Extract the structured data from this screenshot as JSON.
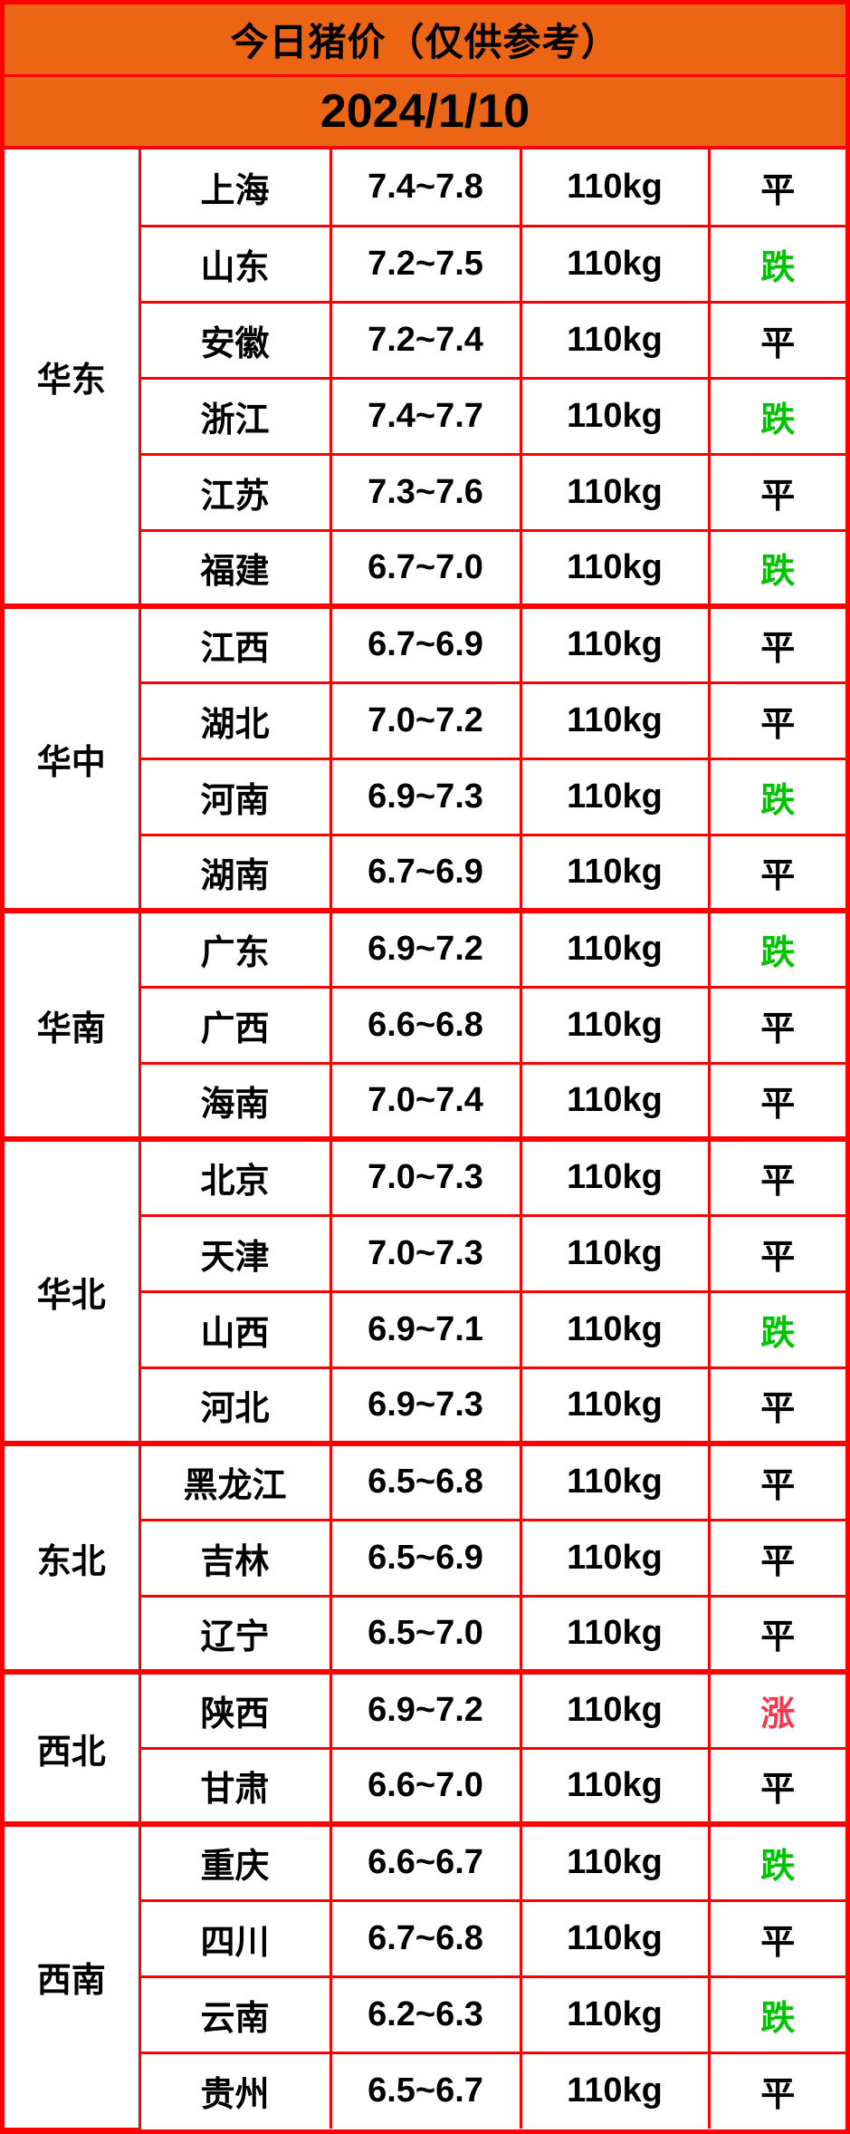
{
  "colors": {
    "header_bg": "#EC6514",
    "border": "#FE0000",
    "text": "#000000",
    "status_flat": "#000000",
    "status_down": "#00C300",
    "status_up": "#F5384E"
  },
  "chart_data": {
    "type": "table",
    "title": "今日猪价（仅供参考）",
    "date": "2024/1/10",
    "legend_note": "平=flat(black) 跌=down(green) 涨=up(red)",
    "status_colors": {
      "平": "#000000",
      "跌": "#00C300",
      "涨": "#F5384E"
    },
    "groups": [
      {
        "region": "华东",
        "rows": [
          {
            "province": "上海",
            "price": "7.4~7.8",
            "weight": "110kg",
            "status": "平"
          },
          {
            "province": "山东",
            "price": "7.2~7.5",
            "weight": "110kg",
            "status": "跌"
          },
          {
            "province": "安徽",
            "price": "7.2~7.4",
            "weight": "110kg",
            "status": "平"
          },
          {
            "province": "浙江",
            "price": "7.4~7.7",
            "weight": "110kg",
            "status": "跌"
          },
          {
            "province": "江苏",
            "price": "7.3~7.6",
            "weight": "110kg",
            "status": "平"
          },
          {
            "province": "福建",
            "price": "6.7~7.0",
            "weight": "110kg",
            "status": "跌"
          }
        ]
      },
      {
        "region": "华中",
        "rows": [
          {
            "province": "江西",
            "price": "6.7~6.9",
            "weight": "110kg",
            "status": "平"
          },
          {
            "province": "湖北",
            "price": "7.0~7.2",
            "weight": "110kg",
            "status": "平"
          },
          {
            "province": "河南",
            "price": "6.9~7.3",
            "weight": "110kg",
            "status": "跌"
          },
          {
            "province": "湖南",
            "price": "6.7~6.9",
            "weight": "110kg",
            "status": "平"
          }
        ]
      },
      {
        "region": "华南",
        "rows": [
          {
            "province": "广东",
            "price": "6.9~7.2",
            "weight": "110kg",
            "status": "跌"
          },
          {
            "province": "广西",
            "price": "6.6~6.8",
            "weight": "110kg",
            "status": "平"
          },
          {
            "province": "海南",
            "price": "7.0~7.4",
            "weight": "110kg",
            "status": "平"
          }
        ]
      },
      {
        "region": "华北",
        "rows": [
          {
            "province": "北京",
            "price": "7.0~7.3",
            "weight": "110kg",
            "status": "平"
          },
          {
            "province": "天津",
            "price": "7.0~7.3",
            "weight": "110kg",
            "status": "平"
          },
          {
            "province": "山西",
            "price": "6.9~7.1",
            "weight": "110kg",
            "status": "跌"
          },
          {
            "province": "河北",
            "price": "6.9~7.3",
            "weight": "110kg",
            "status": "平"
          }
        ]
      },
      {
        "region": "东北",
        "rows": [
          {
            "province": "黑龙江",
            "price": "6.5~6.8",
            "weight": "110kg",
            "status": "平"
          },
          {
            "province": "吉林",
            "price": "6.5~6.9",
            "weight": "110kg",
            "status": "平"
          },
          {
            "province": "辽宁",
            "price": "6.5~7.0",
            "weight": "110kg",
            "status": "平"
          }
        ]
      },
      {
        "region": "西北",
        "rows": [
          {
            "province": "陕西",
            "price": "6.9~7.2",
            "weight": "110kg",
            "status": "涨"
          },
          {
            "province": "甘肃",
            "price": "6.6~7.0",
            "weight": "110kg",
            "status": "平"
          }
        ]
      },
      {
        "region": "西南",
        "rows": [
          {
            "province": "重庆",
            "price": "6.6~6.7",
            "weight": "110kg",
            "status": "跌"
          },
          {
            "province": "四川",
            "price": "6.7~6.8",
            "weight": "110kg",
            "status": "平"
          },
          {
            "province": "云南",
            "price": "6.2~6.3",
            "weight": "110kg",
            "status": "跌"
          },
          {
            "province": "贵州",
            "price": "6.5~6.7",
            "weight": "110kg",
            "status": "平"
          }
        ]
      }
    ]
  }
}
